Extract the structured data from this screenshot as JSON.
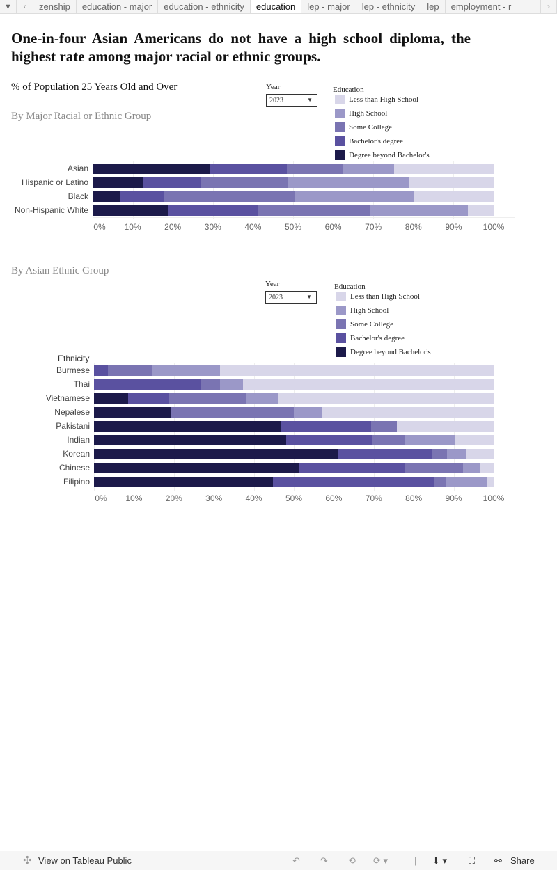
{
  "tabs": {
    "items": [
      "zenship",
      "education - major",
      "education - ethnicity",
      "education",
      "lep - major",
      "lep - ethnicity",
      "lep",
      "employment - r"
    ],
    "active": 3
  },
  "title": "One-in-four Asian Americans do not have a high school diploma, the highest rate among major racial or ethnic groups.",
  "subtitle": "% of Population 25 Years Old and Over",
  "colors": {
    "Less than High School": "#d8d6e9",
    "High School": "#9b98c8",
    "Some College": "#7a74b2",
    "Bachelor's degree": "#5a51a0",
    "Degree beyond Bachelor's": "#1c1a4a"
  },
  "legend": {
    "title": "Education",
    "items": [
      "Less than High School",
      "High School",
      "Some College",
      "Bachelor's degree",
      "Degree beyond Bachelor's"
    ]
  },
  "year_filter": {
    "label": "Year",
    "value": "2023"
  },
  "footer": {
    "view": "View on Tableau Public",
    "share": "Share"
  },
  "chart_data": [
    {
      "type": "bar",
      "stacked": true,
      "orientation": "horizontal",
      "title": "By Major Racial or Ethnic Group",
      "xlabel": "",
      "ylabel": "",
      "xlim": [
        0,
        100
      ],
      "ticks": [
        "0%",
        "10%",
        "20%",
        "30%",
        "40%",
        "50%",
        "60%",
        "70%",
        "80%",
        "90%",
        "100%"
      ],
      "categories": [
        "Asian",
        "Hispanic or Latino",
        "Black",
        "Non-Hispanic White"
      ],
      "series": [
        {
          "name": "Degree beyond Bachelor's",
          "values": [
            29.3,
            12.5,
            6.8,
            18.8
          ]
        },
        {
          "name": "Bachelor's degree",
          "values": [
            19.1,
            14.6,
            10.9,
            22.4
          ]
        },
        {
          "name": "Some College",
          "values": [
            13.9,
            21.5,
            32.8,
            28.1
          ]
        },
        {
          "name": "High School",
          "values": [
            12.8,
            30.4,
            29.7,
            24.3
          ]
        },
        {
          "name": "Less than High School",
          "values": [
            24.9,
            21.0,
            19.8,
            6.4
          ]
        }
      ]
    },
    {
      "type": "bar",
      "stacked": true,
      "orientation": "horizontal",
      "title": "By Asian Ethnic Group",
      "ylabel": "Ethnicity",
      "xlabel": "",
      "xlim": [
        0,
        100
      ],
      "ticks": [
        "0%",
        "10%",
        "20%",
        "30%",
        "40%",
        "50%",
        "60%",
        "70%",
        "80%",
        "90%",
        "100%"
      ],
      "categories": [
        "Burmese",
        "Thai",
        "Vietnamese",
        "Nepalese",
        "Pakistani",
        "Indian",
        "Korean",
        "Chinese",
        "Filipino"
      ],
      "series": [
        {
          "name": "Degree beyond Bachelor's",
          "values": [
            0,
            0,
            8.6,
            19.2,
            46.7,
            48.0,
            61.2,
            51.3,
            44.8
          ]
        },
        {
          "name": "Bachelor's degree",
          "values": [
            3.5,
            26.9,
            10.2,
            0,
            22.6,
            21.7,
            23.4,
            26.6,
            40.4
          ]
        },
        {
          "name": "Some College",
          "values": [
            11.0,
            4.7,
            19.4,
            30.8,
            6.4,
            8.0,
            3.8,
            14.4,
            2.8
          ]
        },
        {
          "name": "High School",
          "values": [
            17.1,
            5.6,
            7.8,
            6.9,
            0,
            12.5,
            4.7,
            4.2,
            10.4
          ]
        },
        {
          "name": "Less than High School",
          "values": [
            68.4,
            62.8,
            54.0,
            43.1,
            24.3,
            9.8,
            6.9,
            3.5,
            1.6
          ]
        }
      ]
    }
  ]
}
